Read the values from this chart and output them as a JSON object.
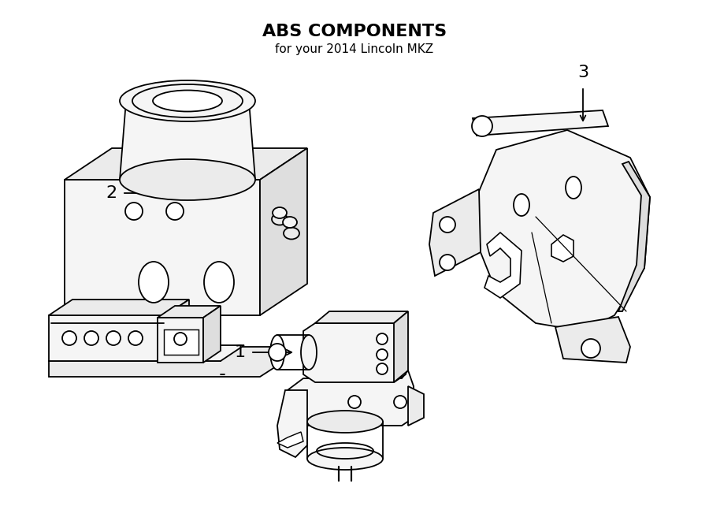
{
  "title": "ABS COMPONENTS",
  "subtitle": "for your 2014 Lincoln MKZ",
  "background_color": "#ffffff",
  "line_color": "#000000",
  "line_width": 1.3,
  "fig_width": 9.0,
  "fig_height": 6.61,
  "dpi": 100
}
